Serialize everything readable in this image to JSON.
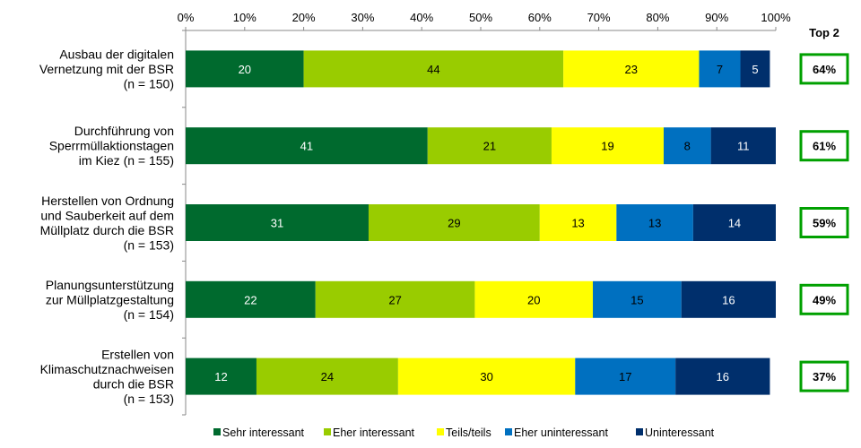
{
  "chart_data": {
    "type": "bar",
    "orientation": "horizontal-stacked-100",
    "categories": [
      [
        "Ausbau der digitalen",
        "Vernetzung mit der BSR",
        "(n = 150)"
      ],
      [
        "Durchführung von",
        "Sperrmüllaktionstagen",
        "im Kiez (n = 155)"
      ],
      [
        "Herstellen von Ordnung",
        "und Sauberkeit auf dem",
        "Müllplatz durch die BSR",
        "(n = 153)"
      ],
      [
        "Planungsunterstützung",
        "zur Müllplatzgestaltung",
        "(n = 154)"
      ],
      [
        "Erstellen von",
        "Klimaschutznachweisen",
        "durch die BSR",
        "(n = 153)"
      ]
    ],
    "series": [
      {
        "name": "Sehr interessant",
        "color": "#006a2e",
        "label_color": "#ffffff",
        "values": [
          20,
          41,
          31,
          22,
          12
        ]
      },
      {
        "name": "Eher interessant",
        "color": "#99cc00",
        "label_color": "#000000",
        "values": [
          44,
          21,
          29,
          27,
          24
        ]
      },
      {
        "name": "Teils/teils",
        "color": "#ffff00",
        "label_color": "#000000",
        "values": [
          23,
          19,
          13,
          20,
          30
        ]
      },
      {
        "name": "Eher uninteressant",
        "color": "#0070c0",
        "label_color": "#000000",
        "values": [
          7,
          8,
          13,
          15,
          17
        ]
      },
      {
        "name": "Uninteressant",
        "color": "#002f6c",
        "label_color": "#ffffff",
        "values": [
          5,
          11,
          14,
          16,
          16
        ]
      }
    ],
    "xlim": [
      0,
      100
    ],
    "xticks": [
      "0%",
      "10%",
      "20%",
      "30%",
      "40%",
      "50%",
      "60%",
      "70%",
      "80%",
      "90%",
      "100%"
    ],
    "top2_title": "Top 2",
    "top2_values": [
      "64%",
      "61%",
      "59%",
      "49%",
      "37%"
    ],
    "top2_border_color": "#00a000",
    "legend_position": "bottom"
  }
}
